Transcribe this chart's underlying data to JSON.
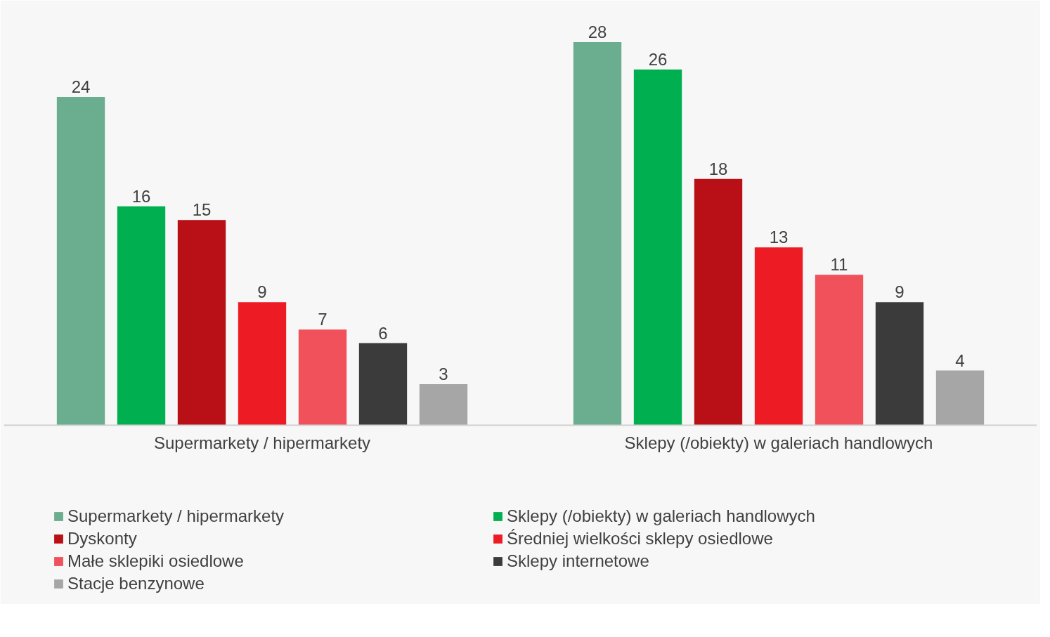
{
  "chart_data": {
    "type": "bar",
    "categories": [
      "Supermarkety / hipermarkety",
      "Sklepy (/obiekty) w galeriach handlowych"
    ],
    "series": [
      {
        "name": "Supermarkety / hipermarkety",
        "color": "#6aad8f",
        "values": [
          24,
          28
        ]
      },
      {
        "name": "Sklepy (/obiekty) w galeriach handlowych",
        "color": "#00b050",
        "values": [
          16,
          26
        ]
      },
      {
        "name": "Dyskonty",
        "color": "#b81016",
        "values": [
          15,
          18
        ]
      },
      {
        "name": "Średniej wielkości sklepy osiedlowe",
        "color": "#ed1c24",
        "values": [
          9,
          13
        ]
      },
      {
        "name": "Małe sklepiki osiedlowe",
        "color": "#f0515a",
        "values": [
          7,
          11
        ]
      },
      {
        "name": "Sklepy internetowe",
        "color": "#3b3b3b",
        "values": [
          6,
          9
        ]
      },
      {
        "name": "Stacje benzynowe",
        "color": "#a6a6a6",
        "values": [
          3,
          4
        ]
      }
    ],
    "data_labels": true,
    "grid": false,
    "legend": "bottom"
  }
}
